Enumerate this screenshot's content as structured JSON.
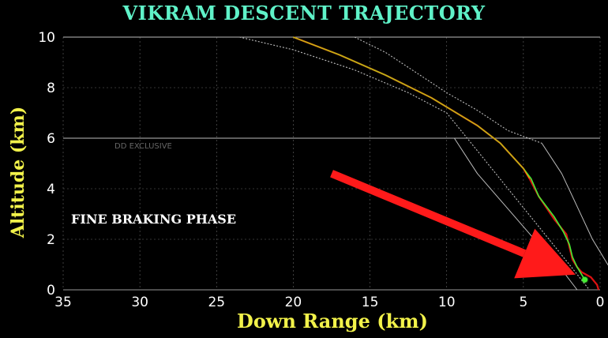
{
  "title": "VIKRAM DESCENT TRAJECTORY",
  "watermark": "DD EXCLUSIVE",
  "annotation": "FINE BRAKING PHASE",
  "colors": {
    "background": "#000000",
    "title": "#5ff2c8",
    "axis_label": "#f2f24a",
    "grid": "#666666",
    "tick": "#ffffff",
    "boundary": "#bbbbbb",
    "planned": "#ff9a00",
    "actual": "#44ee33",
    "deviation": "#dd1111",
    "arrow": "#ff1a1a"
  },
  "chart_data": {
    "type": "line",
    "title": "VIKRAM DESCENT TRAJECTORY",
    "xlabel": "Down Range (km)",
    "ylabel": "Altitude (km)",
    "xlim": [
      35,
      0
    ],
    "ylim": [
      0,
      10
    ],
    "xticks": [
      "35",
      "30",
      "25",
      "20",
      "15",
      "10",
      "5",
      "0"
    ],
    "yticks": [
      "0",
      "2",
      "4",
      "6",
      "8",
      "10"
    ],
    "grid": true,
    "series": [
      {
        "role": "outer-boundary-dotted",
        "x": [
          23.5,
          20,
          16,
          12.5,
          10,
          8,
          6,
          4,
          2,
          0.7
        ],
        "y": [
          10,
          9.5,
          8.7,
          7.8,
          7.0,
          5.5,
          4.0,
          2.5,
          1.0,
          0
        ]
      },
      {
        "role": "outer-boundary-solid",
        "x": [
          9.5,
          8,
          6,
          4,
          2.5,
          1.5
        ],
        "y": [
          6.0,
          4.6,
          3.2,
          1.8,
          0.8,
          0
        ]
      },
      {
        "role": "inner-boundary-dotted",
        "x": [
          16,
          14,
          12,
          10,
          8,
          6,
          3.8
        ],
        "y": [
          10,
          9.4,
          8.6,
          7.8,
          7.1,
          6.3,
          5.8
        ]
      },
      {
        "role": "inner-boundary-solid",
        "x": [
          3.8,
          2.5,
          1.5,
          0.5,
          -0.6,
          -1.2,
          -1.3
        ],
        "y": [
          5.8,
          4.6,
          3.3,
          2.0,
          0.9,
          0.2,
          0
        ]
      },
      {
        "role": "planned-trajectory",
        "x": [
          20,
          17,
          14,
          11,
          8,
          6.5,
          5.0,
          4.6,
          4.0,
          3.0,
          2.2,
          2.0,
          1.8,
          1.5,
          1.2,
          0.6,
          0.2,
          0.1
        ],
        "y": [
          10,
          9.3,
          8.5,
          7.6,
          6.5,
          5.8,
          4.8,
          4.4,
          3.7,
          2.8,
          2.2,
          1.7,
          1.2,
          0.9,
          0.7,
          0.5,
          0.2,
          0
        ]
      },
      {
        "role": "actual-trajectory",
        "x": [
          20,
          17,
          14,
          11,
          8,
          6.5,
          5.0,
          4.5,
          4.0,
          3.0,
          2.4,
          2.0,
          1.8,
          1.5,
          1.2,
          1.0
        ],
        "y": [
          10,
          9.3,
          8.5,
          7.6,
          6.5,
          5.8,
          4.8,
          4.4,
          3.7,
          2.9,
          2.3,
          1.8,
          1.3,
          0.9,
          0.6,
          0.4
        ]
      }
    ],
    "current_position": {
      "x": 1.0,
      "y": 0.4
    },
    "arrow": {
      "from": {
        "x": 17.5,
        "y": 4.6
      },
      "to": {
        "x": 1.6,
        "y": 0.6
      }
    }
  }
}
